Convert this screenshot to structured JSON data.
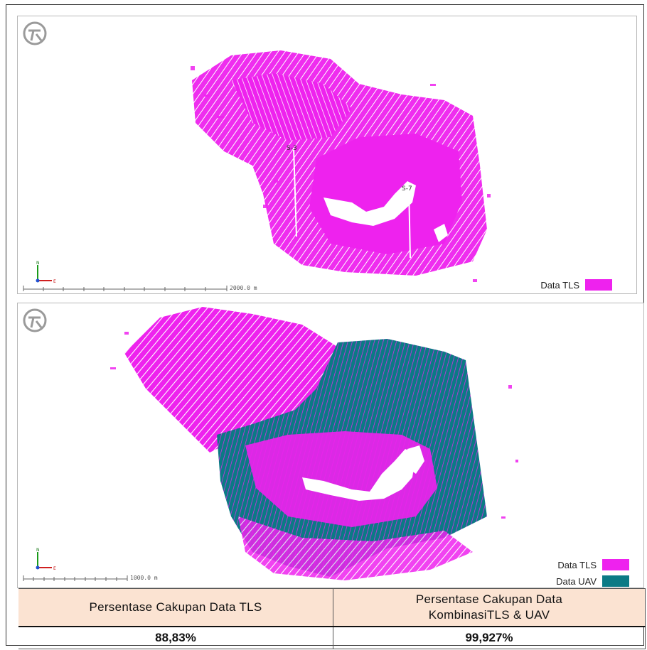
{
  "colors": {
    "tls": "#ee22ee",
    "uav": "#0b7a85",
    "table_header_bg": "#fbe3d2"
  },
  "top_panel": {
    "legend": [
      {
        "label": "Data TLS",
        "color": "#ee22ee"
      }
    ],
    "scale_label": "2000.0 m",
    "station_labels": [
      "S-3",
      "S-7"
    ],
    "axis_labels": {
      "north": "N",
      "east": "E"
    }
  },
  "bottom_panel": {
    "legend": [
      {
        "label": "Data TLS",
        "color": "#ee22ee"
      },
      {
        "label": "Data UAV",
        "color": "#0b7a85"
      }
    ],
    "scale_label": "1000.0 m",
    "axis_labels": {
      "north": "N",
      "east": "E"
    }
  },
  "table": {
    "headers": [
      {
        "line1": "Persentase Cakupan Data TLS",
        "line2": ""
      },
      {
        "line1": "Persentase Cakupan Data",
        "line2": "KombinasiTLS & UAV"
      }
    ],
    "values": [
      "88,83%",
      "99,927%"
    ]
  }
}
